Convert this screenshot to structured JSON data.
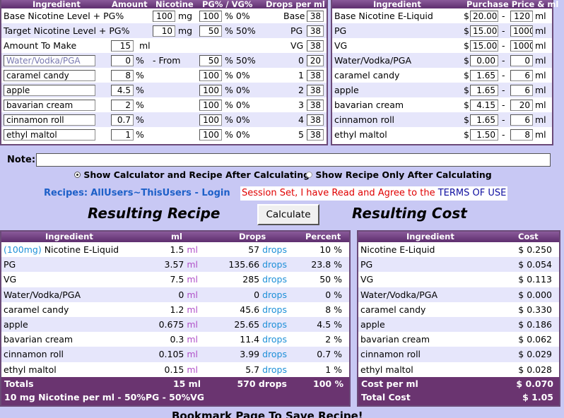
{
  "top_left": {
    "headers": [
      "Ingredient",
      "Amount",
      "Nicotine",
      "PG% / VG%",
      "Drops per ml"
    ],
    "rows": [
      {
        "label": "Base Nicotine Level + PG%",
        "amount": "100",
        "amount_unit": "mg",
        "pg": "100",
        "pct": "% 0%",
        "drops_label": "Base",
        "drops": "38"
      },
      {
        "label": "Target Nicotine Level + PG%",
        "amount": "10",
        "amount_unit": "mg",
        "pg": "50",
        "pct": "% 50%",
        "drops_label": "PG",
        "drops": "38"
      },
      {
        "label": "Amount To Make",
        "amount": "15",
        "amount_unit": "ml",
        "drops_label": "VG",
        "drops": "38"
      }
    ],
    "flavors": [
      {
        "name": "Water/Vodka/PGA",
        "amount": "0",
        "unit": "%",
        "from": "- From",
        "pg": "50",
        "pct": "% 50%",
        "idx": "0",
        "drops": "20"
      },
      {
        "name": "caramel candy",
        "amount": "8",
        "unit": "%",
        "pg": "100",
        "pct": "% 0%",
        "idx": "1",
        "drops": "38"
      },
      {
        "name": "apple",
        "amount": "4.5",
        "unit": "%",
        "pg": "100",
        "pct": "% 0%",
        "idx": "2",
        "drops": "38"
      },
      {
        "name": "bavarian cream",
        "amount": "2",
        "unit": "%",
        "pg": "100",
        "pct": "% 0%",
        "idx": "3",
        "drops": "38"
      },
      {
        "name": "cinnamon roll",
        "amount": "0.7",
        "unit": "%",
        "pg": "100",
        "pct": "% 0%",
        "idx": "4",
        "drops": "38"
      },
      {
        "name": "ethyl maltol",
        "amount": "1",
        "unit": "%",
        "pg": "100",
        "pct": "% 0%",
        "idx": "5",
        "drops": "38"
      }
    ]
  },
  "top_right": {
    "headers": [
      "Ingredient",
      "Purchase Price & ml"
    ],
    "rows": [
      {
        "name": "Base Nicotine E-Liquid",
        "price": "20.00",
        "ml": "120"
      },
      {
        "name": "PG",
        "price": "15.00",
        "ml": "1000"
      },
      {
        "name": "VG",
        "price": "15.00",
        "ml": "1000"
      },
      {
        "name": "Water/Vodka/PGA",
        "price": "0.00",
        "ml": "0"
      },
      {
        "name": "caramel candy",
        "price": "1.65",
        "ml": "6"
      },
      {
        "name": "apple",
        "price": "1.65",
        "ml": "6"
      },
      {
        "name": "bavarian cream",
        "price": "4.15",
        "ml": "20"
      },
      {
        "name": "cinnamon roll",
        "price": "1.65",
        "ml": "6"
      },
      {
        "name": "ethyl maltol",
        "price": "1.50",
        "ml": "8"
      }
    ],
    "currency": "$",
    "dash": "-",
    "unit": "ml"
  },
  "note_label": "Note:",
  "options": {
    "show_both": "Show Calculator and Recipe After Calculating",
    "show_recipe": "Show Recipe Only After Calculating"
  },
  "recipes": {
    "label": "Recipes:",
    "all_users": "AllUsers",
    "tilde": "~",
    "this_users": "ThisUsers",
    "sep": " - ",
    "login": "Login",
    "session": "Session Set, I have Read and Agree to the ",
    "terms": "TERMS OF USE"
  },
  "resulting_recipe_title": "Resulting Recipe",
  "calculate_label": "Calculate",
  "resulting_cost_title": "Resulting Cost",
  "recipe_table": {
    "headers": [
      "Ingredient",
      "ml",
      "Drops",
      "Percent"
    ],
    "rows": [
      {
        "prefix": "(100mg)",
        "name": " Nicotine E-Liquid",
        "ml": "1.5",
        "drops": "57",
        "percent": "10 %"
      },
      {
        "prefix": "",
        "name": "PG",
        "ml": "3.57",
        "drops": "135.66",
        "percent": "23.8 %"
      },
      {
        "prefix": "",
        "name": "VG",
        "ml": "7.5",
        "drops": "285",
        "percent": "50 %"
      },
      {
        "prefix": "",
        "name": "Water/Vodka/PGA",
        "ml": "0",
        "drops": "0",
        "percent": "0 %"
      },
      {
        "prefix": "",
        "name": "caramel candy",
        "ml": "1.2",
        "drops": "45.6",
        "percent": "8 %"
      },
      {
        "prefix": "",
        "name": "apple",
        "ml": "0.675",
        "drops": "25.65",
        "percent": "4.5 %"
      },
      {
        "prefix": "",
        "name": "bavarian cream",
        "ml": "0.3",
        "drops": "11.4",
        "percent": "2 %"
      },
      {
        "prefix": "",
        "name": "cinnamon roll",
        "ml": "0.105",
        "drops": "3.99",
        "percent": "0.7 %"
      },
      {
        "prefix": "",
        "name": "ethyl maltol",
        "ml": "0.15",
        "drops": "5.7",
        "percent": "1 %"
      }
    ],
    "ml_unit": "ml",
    "drops_unit": "drops",
    "totals_label": "Totals",
    "totals_ml": "15 ml",
    "totals_drops": "570 drops",
    "totals_percent": "100 %",
    "summary": "10 mg Nicotine per ml - 50%PG - 50%VG"
  },
  "cost_table": {
    "headers": [
      "Ingredient",
      "Cost"
    ],
    "rows": [
      {
        "name": "Nicotine E-Liquid",
        "cost": "$ 0.250"
      },
      {
        "name": "PG",
        "cost": "$ 0.054"
      },
      {
        "name": "VG",
        "cost": "$ 0.113"
      },
      {
        "name": "Water/Vodka/PGA",
        "cost": "$ 0.000"
      },
      {
        "name": "caramel candy",
        "cost": "$ 0.330"
      },
      {
        "name": "apple",
        "cost": "$ 0.186"
      },
      {
        "name": "bavarian cream",
        "cost": "$ 0.062"
      },
      {
        "name": "cinnamon roll",
        "cost": "$ 0.029"
      },
      {
        "name": "ethyl maltol",
        "cost": "$ 0.028"
      }
    ],
    "cost_per_ml_label": "Cost per ml",
    "cost_per_ml": "$ 0.070",
    "total_cost_label": "Total Cost",
    "total_cost": "$ 1.05"
  },
  "bookmark": "Bookmark Page To Save Recipe!",
  "colors": {
    "accent": "#6a3470",
    "background": "#c8c8f4",
    "link": "#1e60c8",
    "session": "#e00000"
  }
}
